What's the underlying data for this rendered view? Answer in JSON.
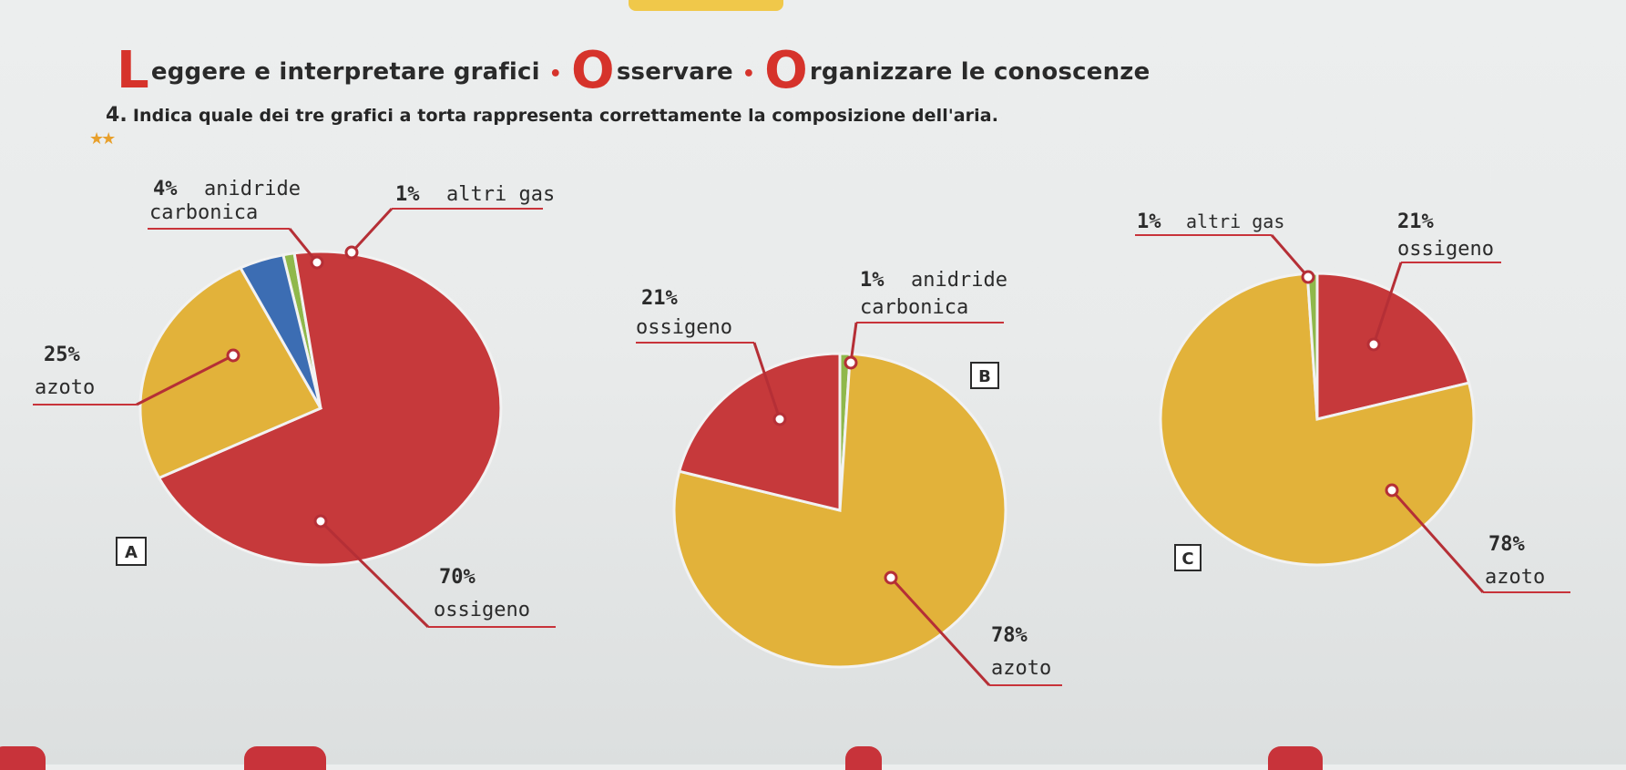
{
  "heading": {
    "part1_initial": "L",
    "part1_rest": "eggere e interpretare grafici",
    "part2_initial": "O",
    "part2_rest": "sservare",
    "part3_initial": "O",
    "part3_rest": "rganizzare le conoscenze"
  },
  "question": {
    "number": "4.",
    "text": "Indica quale dei tre grafici a torta rappresenta correttamente la composizione dell'aria.",
    "difficulty": "★★"
  },
  "colors": {
    "red": "#c6393b",
    "yellow": "#e2b23a",
    "blue": "#3c6db3",
    "green": "#8fb84b",
    "accent": "#d6332b"
  },
  "chart_data": [
    {
      "type": "pie",
      "badge": "A",
      "slices": [
        {
          "pct_label": "70%",
          "name": "ossigeno",
          "value": 70,
          "color": "#c6393b"
        },
        {
          "pct_label": "25%",
          "name": "azoto",
          "value": 25,
          "color": "#e2b23a"
        },
        {
          "pct_label": "4%",
          "name": "anidride carbonica",
          "name_line1": "anidride",
          "name_line2": "carbonica",
          "value": 4,
          "color": "#3c6db3"
        },
        {
          "pct_label": "1%",
          "name": "altri gas",
          "value": 1,
          "color": "#8fb84b"
        }
      ]
    },
    {
      "type": "pie",
      "badge": "B",
      "slices": [
        {
          "pct_label": "78%",
          "name": "azoto",
          "value": 78,
          "color": "#e2b23a"
        },
        {
          "pct_label": "21%",
          "name": "ossigeno",
          "value": 21,
          "color": "#c6393b"
        },
        {
          "pct_label": "1%",
          "name": "anidride carbonica",
          "name_line1": "anidride",
          "name_line2": "carbonica",
          "value": 1,
          "color": "#8fb84b"
        }
      ]
    },
    {
      "type": "pie",
      "badge": "C",
      "slices": [
        {
          "pct_label": "21%",
          "name": "ossigeno",
          "value": 21,
          "color": "#c6393b"
        },
        {
          "pct_label": "78%",
          "name": "azoto",
          "value": 78,
          "color": "#e2b23a"
        },
        {
          "pct_label": "1%",
          "name": "altri gas",
          "value": 1,
          "color": "#8fb84b"
        }
      ]
    }
  ]
}
